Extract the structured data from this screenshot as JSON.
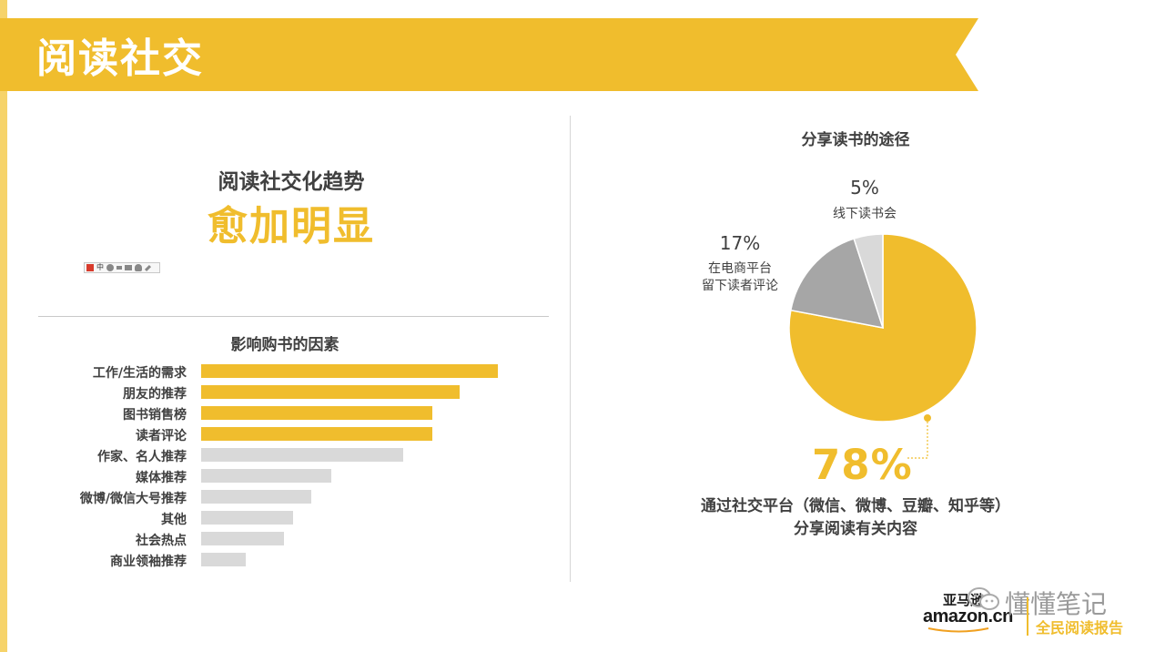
{
  "page": {
    "title": "阅读社交",
    "accent_color": "#f0bd2d",
    "banner_color": "#f0bd2d"
  },
  "trend": {
    "line1": "阅读社交化趋势",
    "line2": "愈加明显"
  },
  "toolbar": {
    "glyph": "中",
    "icons": [
      "logo-icon",
      "chinese-input-icon",
      "moon-icon",
      "punctuation-icon",
      "keyboard-icon",
      "user-icon",
      "wrench-icon"
    ]
  },
  "bar_chart": {
    "title": "影响购书的因素"
  },
  "pie_chart": {
    "title": "分享读书的途径",
    "slices": [
      {
        "pct": "5%",
        "label_lines": [
          "线下读书会"
        ]
      },
      {
        "pct": "17%",
        "label_lines": [
          "在电商平台",
          "留下读者评论"
        ]
      },
      {
        "pct": "78%",
        "label_lines": [
          "通过社交平台（微信、微博、豆瓣、知乎等）",
          "分享阅读有关内容"
        ]
      }
    ]
  },
  "footer": {
    "watermark": "懂懂笔记",
    "logo_cn": "亚马逊",
    "logo_en": "amazon.cn",
    "report": "全民阅读报告"
  },
  "chart_data": [
    {
      "type": "bar",
      "orientation": "horizontal",
      "title": "影响购书的因素",
      "categories": [
        "工作/生活的需求",
        "朋友的推荐",
        "图书销售榜",
        "读者评论",
        "作家、名人推荐",
        "媒体推荐",
        "微博/微信大号推荐",
        "其他",
        "社会热点",
        "商业领袖推荐"
      ],
      "values": [
        100,
        87,
        78,
        78,
        68,
        44,
        37,
        31,
        28,
        15
      ],
      "highlight_colors": [
        "#f0bd2d",
        "#f0bd2d",
        "#f0bd2d",
        "#f0bd2d",
        "#d9d9d9",
        "#d9d9d9",
        "#d9d9d9",
        "#d9d9d9",
        "#d9d9d9",
        "#d9d9d9"
      ],
      "xlabel": "",
      "ylabel": "",
      "grid": false
    },
    {
      "type": "pie",
      "title": "分享读书的途径",
      "categories": [
        "通过社交平台（微信、微博、豆瓣、知乎等）分享阅读有关内容",
        "在电商平台留下读者评论",
        "线下读书会"
      ],
      "values": [
        78,
        17,
        5
      ],
      "colors": [
        "#f0bd2d",
        "#a6a6a6",
        "#d9d9d9"
      ]
    }
  ]
}
